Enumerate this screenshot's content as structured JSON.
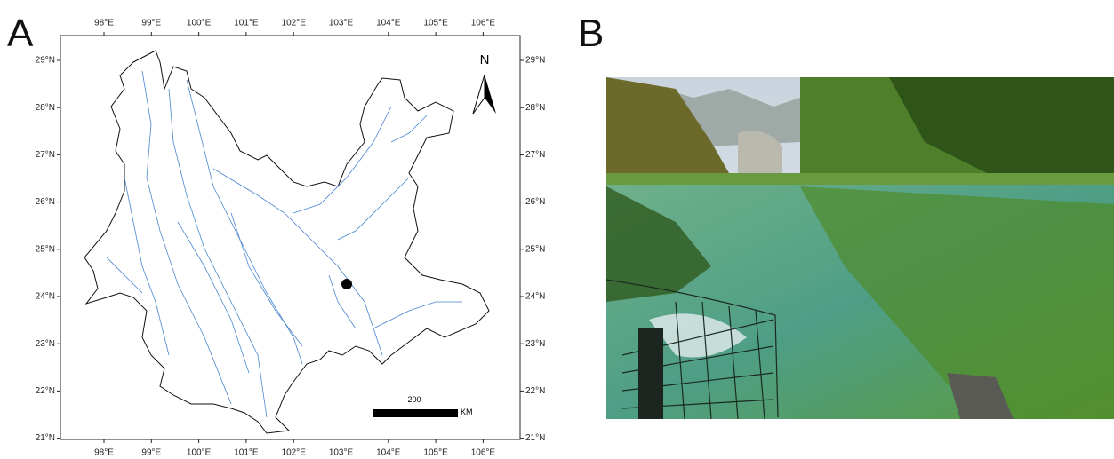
{
  "panels": [
    {
      "label": "A",
      "map": {
        "lon_labels": [
          "98°E",
          "99°E",
          "100°E",
          "101°E",
          "102°E",
          "103°E",
          "104°E",
          "105°E",
          "106°E"
        ],
        "lat_labels": [
          "29°N",
          "28°N",
          "27°N",
          "26°N",
          "25°N",
          "24°N",
          "23°N",
          "22°N",
          "21°N"
        ],
        "north": "N",
        "scale_value": "200",
        "scale_unit": "KM"
      }
    },
    {
      "label": "B"
    }
  ]
}
